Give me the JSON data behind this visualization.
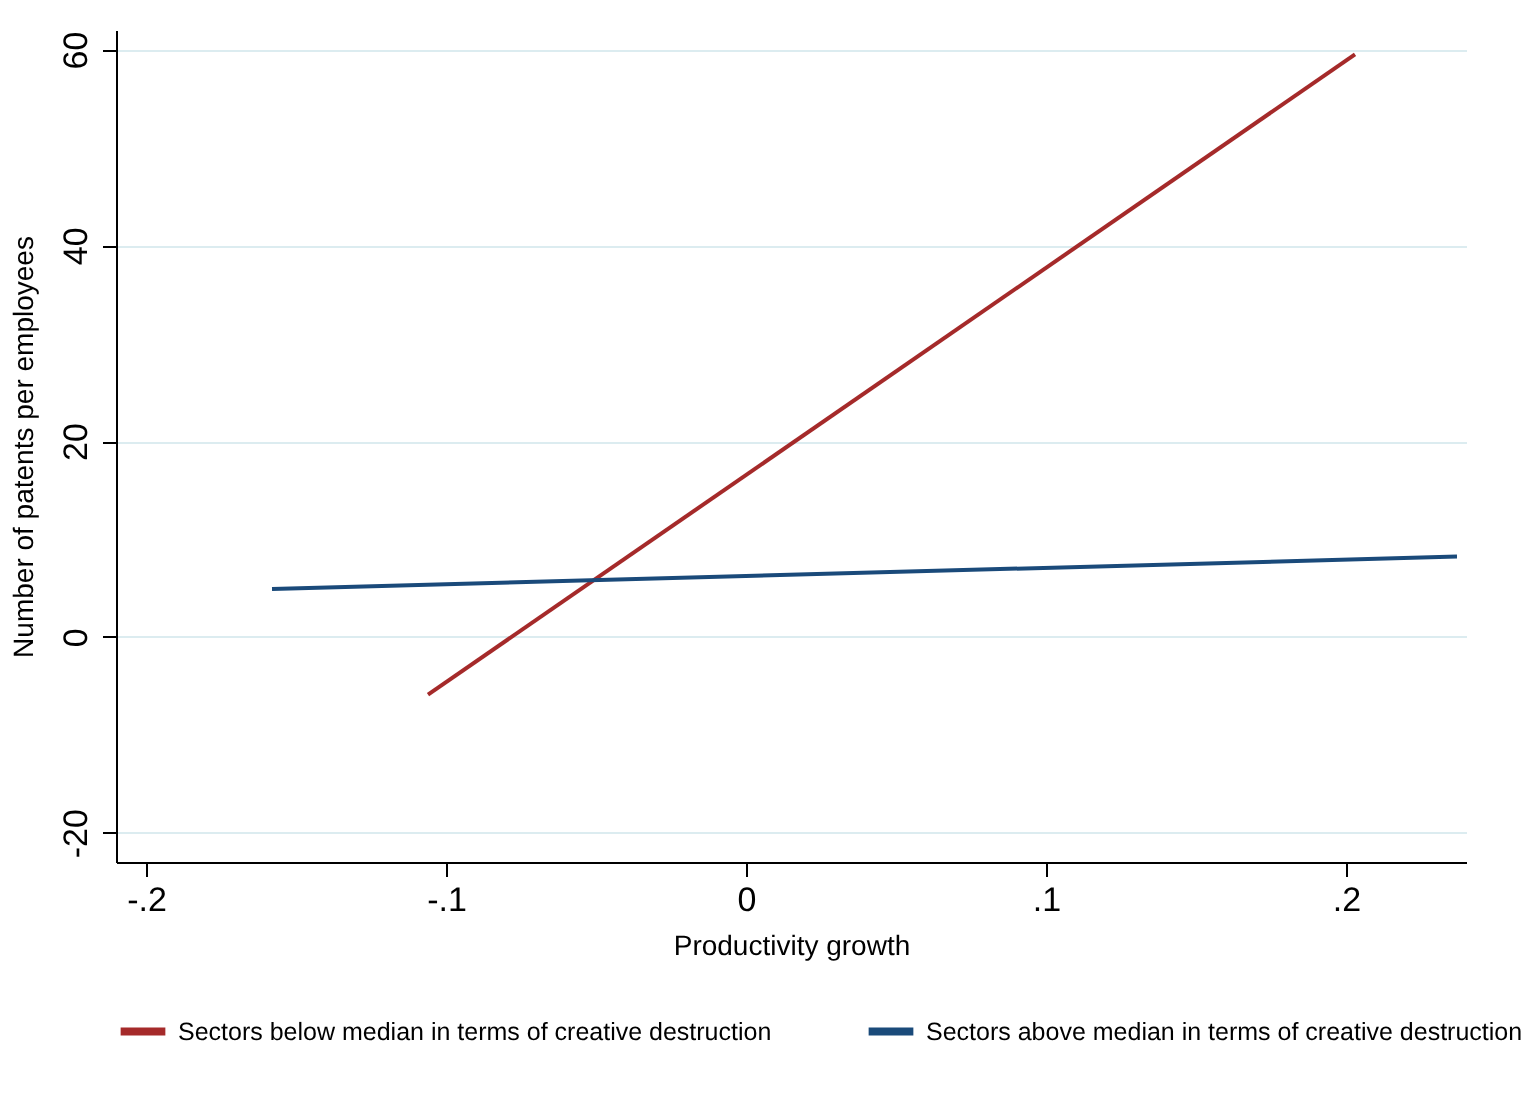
{
  "chart_data": {
    "type": "line",
    "xlabel": "Productivity growth",
    "ylabel": "Number of patents per employees",
    "series": [
      {
        "name": "Sectors below median in terms of creative destruction",
        "color": "#a52a2a",
        "x": [
          -0.106,
          0.203
        ],
        "values": [
          -5.9,
          59.5
        ]
      },
      {
        "name": "Sectors above median in terms of creative destruction",
        "color": "#1a4a7a",
        "x": [
          -0.158,
          0.237
        ],
        "values": [
          4.9,
          8.2
        ]
      }
    ],
    "xlim": [
      -0.21,
      0.24
    ],
    "xticks": [
      {
        "value": -0.2,
        "label": "-.2"
      },
      {
        "value": -0.1,
        "label": "-.1"
      },
      0,
      {
        "value": 0.1,
        "label": ".1"
      },
      {
        "value": 0.2,
        "label": ".2"
      }
    ],
    "ylim": [
      -23,
      62
    ],
    "yticks": [
      -20,
      0,
      20,
      40,
      60
    ],
    "grid": "y",
    "legend": "bottom",
    "marker": "none",
    "line_style": "solid"
  }
}
